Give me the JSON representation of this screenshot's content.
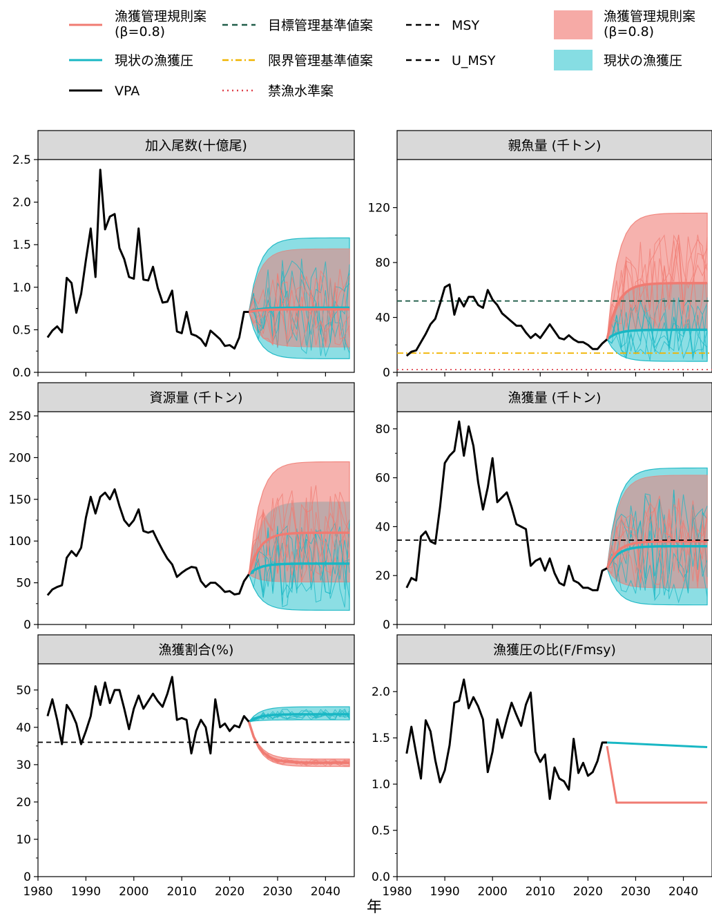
{
  "figure": {
    "xlabel": "年"
  },
  "colors": {
    "rule": "#f07b72",
    "rule_fill": "#f6aaa6",
    "current": "#18b7c4",
    "current_fill": "#86dde3",
    "overlap_fill": "#b8a8a8",
    "vpa": "#000000",
    "target_ref": "#1f5c48",
    "limit_ref": "#f0b400",
    "ban_ref": "#e0404a",
    "msy": "#000000",
    "panel_header": "#d9d9d9"
  },
  "legend": {
    "rule_line": "漁獲管理規則案\n(β=0.8)",
    "current_line": "現状の漁獲圧",
    "vpa": "VPA",
    "target_ref": "目標管理基準値案",
    "limit_ref": "限界管理基準値案",
    "ban_ref": "禁漁水準案",
    "msy": "MSY",
    "u_msy": "U_MSY",
    "rule_band": "漁獲管理規則案\n(β=0.8)",
    "current_band": "現状の漁獲圧"
  },
  "chart_data": [
    {
      "type": "line",
      "title": "加入尾数(十億尾)",
      "xlim": [
        1980,
        2046
      ],
      "ylim": [
        0,
        2.5
      ],
      "xticks": [
        1980,
        1990,
        2000,
        2010,
        2020,
        2030,
        2040
      ],
      "yticks": [
        0.0,
        0.5,
        1.0,
        1.5,
        2.0,
        2.5
      ],
      "ytick_labels": [
        "0.0",
        "0.5",
        "1.0",
        "1.5",
        "2.0",
        "2.5"
      ],
      "vpa": {
        "x": [
          1982,
          1983,
          1984,
          1985,
          1986,
          1987,
          1988,
          1989,
          1990,
          1991,
          1992,
          1993,
          1994,
          1995,
          1996,
          1997,
          1998,
          1999,
          2000,
          2001,
          2002,
          2003,
          2004,
          2005,
          2006,
          2007,
          2008,
          2009,
          2010,
          2011,
          2012,
          2013,
          2014,
          2015,
          2016,
          2017,
          2018,
          2019,
          2020,
          2021,
          2022,
          2023,
          2024
        ],
        "y": [
          0.41,
          0.49,
          0.54,
          0.47,
          1.11,
          1.05,
          0.7,
          0.92,
          1.32,
          1.69,
          1.12,
          2.38,
          1.68,
          1.83,
          1.86,
          1.46,
          1.33,
          1.12,
          1.1,
          1.69,
          1.09,
          1.08,
          1.24,
          0.99,
          0.82,
          0.83,
          0.96,
          0.48,
          0.46,
          0.71,
          0.45,
          0.43,
          0.39,
          0.31,
          0.49,
          0.44,
          0.39,
          0.31,
          0.32,
          0.28,
          0.41,
          0.71,
          0.71
        ]
      },
      "proj_x": [
        2024,
        2045
      ],
      "rule": {
        "median": 0.74,
        "lo": 0.3,
        "hi": 1.45
      },
      "current": {
        "median": 0.76,
        "lo": 0.16,
        "hi": 1.58
      },
      "refs": []
    },
    {
      "type": "line",
      "title": "親魚量 (千トン)",
      "xlim": [
        1980,
        2046
      ],
      "ylim": [
        0,
        155
      ],
      "xticks": [
        1980,
        1990,
        2000,
        2010,
        2020,
        2030,
        2040
      ],
      "yticks": [
        0,
        40,
        80,
        120
      ],
      "ytick_labels": [
        "0",
        "40",
        "80",
        "120"
      ],
      "vpa": {
        "x": [
          1982,
          1983,
          1984,
          1985,
          1986,
          1987,
          1988,
          1989,
          1990,
          1991,
          1992,
          1993,
          1994,
          1995,
          1996,
          1997,
          1998,
          1999,
          2000,
          2001,
          2002,
          2003,
          2004,
          2005,
          2006,
          2007,
          2008,
          2009,
          2010,
          2011,
          2012,
          2013,
          2014,
          2015,
          2016,
          2017,
          2018,
          2019,
          2020,
          2021,
          2022,
          2023,
          2024
        ],
        "y": [
          12,
          15,
          16,
          22,
          28,
          35,
          39,
          50,
          62,
          64,
          42,
          54,
          48,
          55,
          55,
          49,
          47,
          60,
          53,
          49,
          43,
          40,
          37,
          34,
          34,
          29,
          25,
          28,
          25,
          30,
          35,
          30,
          25,
          24,
          27,
          24,
          22,
          22,
          20,
          17,
          17,
          21,
          24
        ]
      },
      "proj_x": [
        2024,
        2045
      ],
      "rule": {
        "median": 65,
        "lo": 31,
        "hi": 116
      },
      "current": {
        "median": 31,
        "lo": 8,
        "hi": 65
      },
      "refs": [
        {
          "kind": "target",
          "y": 52
        },
        {
          "kind": "limit",
          "y": 14
        },
        {
          "kind": "ban",
          "y": 2
        }
      ]
    },
    {
      "type": "line",
      "title": "資源量 (千トン)",
      "xlim": [
        1980,
        2046
      ],
      "ylim": [
        0,
        255
      ],
      "xticks": [
        1980,
        1990,
        2000,
        2010,
        2020,
        2030,
        2040
      ],
      "yticks": [
        0,
        50,
        100,
        150,
        200,
        250
      ],
      "ytick_labels": [
        "0",
        "50",
        "100",
        "150",
        "200",
        "250"
      ],
      "vpa": {
        "x": [
          1982,
          1983,
          1984,
          1985,
          1986,
          1987,
          1988,
          1989,
          1990,
          1991,
          1992,
          1993,
          1994,
          1995,
          1996,
          1997,
          1998,
          1999,
          2000,
          2001,
          2002,
          2003,
          2004,
          2005,
          2006,
          2007,
          2008,
          2009,
          2010,
          2011,
          2012,
          2013,
          2014,
          2015,
          2016,
          2017,
          2018,
          2019,
          2020,
          2021,
          2022,
          2023,
          2024
        ],
        "y": [
          35,
          42,
          45,
          47,
          80,
          88,
          82,
          92,
          128,
          153,
          133,
          153,
          158,
          150,
          162,
          142,
          125,
          118,
          125,
          138,
          112,
          110,
          112,
          100,
          89,
          79,
          72,
          57,
          62,
          66,
          69,
          68,
          52,
          45,
          50,
          50,
          45,
          39,
          40,
          36,
          37,
          52,
          60
        ]
      },
      "proj_x": [
        2024,
        2045
      ],
      "rule": {
        "median": 110,
        "lo": 51,
        "hi": 195
      },
      "current": {
        "median": 73,
        "lo": 17,
        "hi": 147
      },
      "refs": []
    },
    {
      "type": "line",
      "title": "漁獲量 (千トン)",
      "xlim": [
        1980,
        2046
      ],
      "ylim": [
        0,
        87
      ],
      "xticks": [
        1980,
        1990,
        2000,
        2010,
        2020,
        2030,
        2040
      ],
      "yticks": [
        0,
        20,
        40,
        60,
        80
      ],
      "ytick_labels": [
        "0",
        "20",
        "40",
        "60",
        "80"
      ],
      "vpa": {
        "x": [
          1982,
          1983,
          1984,
          1985,
          1986,
          1987,
          1988,
          1989,
          1990,
          1991,
          1992,
          1993,
          1994,
          1995,
          1996,
          1997,
          1998,
          1999,
          2000,
          2001,
          2002,
          2003,
          2004,
          2005,
          2006,
          2007,
          2008,
          2009,
          2010,
          2011,
          2012,
          2013,
          2014,
          2015,
          2016,
          2017,
          2018,
          2019,
          2020,
          2021,
          2022,
          2023,
          2024
        ],
        "y": [
          15,
          19,
          18,
          36,
          38,
          34,
          33,
          48,
          66,
          69,
          71,
          83,
          69,
          81,
          73,
          58,
          47,
          56,
          68,
          50,
          52,
          54,
          48,
          41,
          40,
          39,
          24,
          26,
          27,
          22,
          27,
          21,
          17,
          16,
          24,
          18,
          17,
          15,
          15,
          14,
          14,
          22,
          23
        ]
      },
      "proj_x": [
        2024,
        2045
      ],
      "rule": {
        "median": 34,
        "lo": 15,
        "hi": 61
      },
      "current": {
        "median": 32,
        "lo": 8,
        "hi": 64
      },
      "refs": [
        {
          "kind": "msy",
          "y": 34.5
        }
      ]
    },
    {
      "type": "line",
      "title": "漁獲割合(%)",
      "xlim": [
        1980,
        2046
      ],
      "ylim": [
        0,
        57
      ],
      "xticks": [
        1980,
        1990,
        2000,
        2010,
        2020,
        2030,
        2040
      ],
      "yticks": [
        0,
        10,
        20,
        30,
        40,
        50
      ],
      "ytick_labels": [
        "0",
        "10",
        "20",
        "30",
        "40",
        "50"
      ],
      "vpa": {
        "x": [
          1982,
          1983,
          1984,
          1985,
          1986,
          1987,
          1988,
          1989,
          1990,
          1991,
          1992,
          1993,
          1994,
          1995,
          1996,
          1997,
          1998,
          1999,
          2000,
          2001,
          2002,
          2003,
          2004,
          2005,
          2006,
          2007,
          2008,
          2009,
          2010,
          2011,
          2012,
          2013,
          2014,
          2015,
          2016,
          2017,
          2018,
          2019,
          2020,
          2021,
          2022,
          2023,
          2024
        ],
        "y": [
          43,
          47.5,
          42,
          35.5,
          46,
          44,
          41,
          35.5,
          39,
          43,
          51,
          46,
          52,
          46.5,
          50,
          50,
          45,
          39.5,
          45,
          48.5,
          45,
          47,
          49,
          47,
          45.5,
          49,
          53.5,
          42,
          42.5,
          42,
          33,
          39,
          42,
          40,
          33,
          47.5,
          40,
          41,
          39,
          40.5,
          40,
          43,
          41.5
        ]
      },
      "proj_x": [
        2024,
        2045
      ],
      "rule": {
        "median": 30.5,
        "lo": 29.5,
        "hi": 31.5
      },
      "current": {
        "median": 43.5,
        "lo": 42,
        "hi": 45.5
      },
      "refs": [
        {
          "kind": "msy",
          "y": 36
        }
      ]
    },
    {
      "type": "line",
      "title": "漁獲圧の比(F/Fmsy)",
      "xlim": [
        1980,
        2046
      ],
      "ylim": [
        0,
        2.3
      ],
      "xticks": [
        1980,
        1990,
        2000,
        2010,
        2020,
        2030,
        2040
      ],
      "yticks": [
        0.0,
        0.5,
        1.0,
        1.5,
        2.0
      ],
      "ytick_labels": [
        "0.0",
        "0.5",
        "1.0",
        "1.5",
        "2.0"
      ],
      "vpa": {
        "x": [
          1982,
          1983,
          1984,
          1985,
          1986,
          1987,
          1988,
          1989,
          1990,
          1991,
          1992,
          1993,
          1994,
          1995,
          1996,
          1997,
          1998,
          1999,
          2000,
          2001,
          2002,
          2003,
          2004,
          2005,
          2006,
          2007,
          2008,
          2009,
          2010,
          2011,
          2012,
          2013,
          2014,
          2015,
          2016,
          2017,
          2018,
          2019,
          2020,
          2021,
          2022,
          2023,
          2024
        ],
        "y": [
          1.33,
          1.62,
          1.33,
          1.06,
          1.69,
          1.57,
          1.26,
          1.02,
          1.15,
          1.42,
          1.88,
          1.9,
          2.13,
          1.82,
          1.94,
          1.84,
          1.7,
          1.13,
          1.35,
          1.7,
          1.5,
          1.7,
          1.88,
          1.75,
          1.63,
          1.86,
          1.99,
          1.35,
          1.24,
          1.32,
          0.84,
          1.18,
          1.06,
          1.03,
          0.94,
          1.49,
          1.12,
          1.23,
          1.09,
          1.13,
          1.25,
          1.45,
          1.45
        ]
      },
      "proj_x": [
        2024,
        2045
      ],
      "rule": {
        "median": 0.8,
        "lo": 0.8,
        "hi": 0.8,
        "start": 1.41,
        "drop_year": 2026
      },
      "current": {
        "median": 1.4,
        "lo": 1.4,
        "hi": 1.4
      },
      "refs": []
    }
  ]
}
